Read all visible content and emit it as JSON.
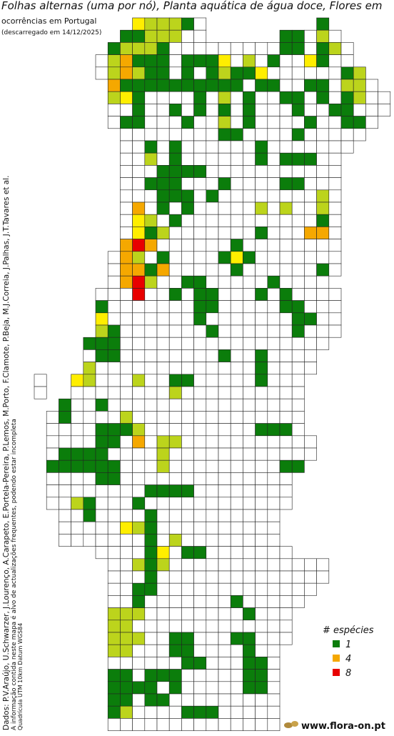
{
  "header": {
    "title": "Folhas alternas (uma por nó), Planta aquática de água doce, Flores em",
    "subtitle": "ocorrências em Portugal",
    "date": "(descarregado em 14/12/2025)"
  },
  "credits": [
    "Dados: P.V.Araújo, U.Schwarzer, J.Lourenço, A.Carapeto, E.Portela-Pereira, P.Lemos, M.Porto, F.Clamote, P.Beja, M.J.Correia, J.Palhas, J.T.Tavares et al.",
    "A informação contida neste mapa é alvo de actualizações frequentes, podendo estar incompleta",
    "Quadrícula UTM 10km Datum WGS84"
  ],
  "legend": {
    "title": "# espécies",
    "values": [
      1,
      4,
      8
    ],
    "colors": [
      "#0b7d0b",
      "#f5a800",
      "#e80000"
    ]
  },
  "footer": {
    "site": "www.flora-on.pt"
  }
}
